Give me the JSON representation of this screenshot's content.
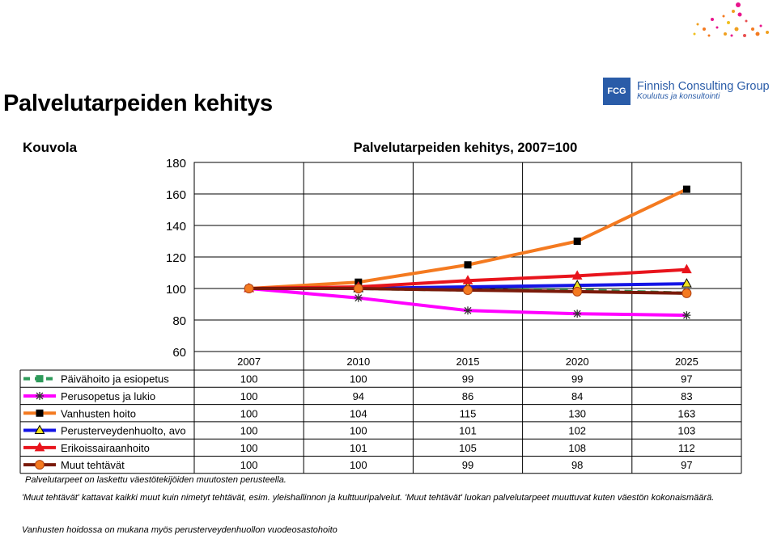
{
  "page": {
    "title": "Palvelutarpeiden kehitys",
    "logo": {
      "mark": "FCG",
      "name": "Finnish Consulting Group",
      "subtitle": "Koulutus ja konsultointi"
    }
  },
  "chart_data": {
    "type": "line",
    "region_label": "Kouvola",
    "title": "Palvelutarpeiden kehitys, 2007=100",
    "categories": [
      "2007",
      "2010",
      "2015",
      "2020",
      "2025"
    ],
    "ylim": [
      60,
      180
    ],
    "yticks": [
      60,
      80,
      100,
      120,
      140,
      160,
      180
    ],
    "grid": true,
    "legend_placement": "data-table",
    "series": [
      {
        "name": "Päivähoito ja esiopetus",
        "color": "#2e9a5a",
        "marker": "square",
        "dashed": true,
        "values": [
          100,
          100,
          99,
          99,
          97
        ]
      },
      {
        "name": "Perusopetus ja lukio",
        "color": "#ff00ff",
        "marker": "star",
        "dashed": false,
        "values": [
          100,
          94,
          86,
          84,
          83
        ]
      },
      {
        "name": "Vanhusten hoito",
        "color": "#f47a20",
        "marker": "square",
        "dashed": false,
        "values": [
          100,
          104,
          115,
          130,
          163
        ]
      },
      {
        "name": "Perusterveydenhuolto, avo",
        "color": "#1414e6",
        "marker": "triangle",
        "dashed": false,
        "values": [
          100,
          100,
          101,
          102,
          103
        ]
      },
      {
        "name": "Erikoissairaanhoito",
        "color": "#e8141c",
        "marker": "triangle",
        "dashed": false,
        "values": [
          100,
          101,
          105,
          108,
          112
        ]
      },
      {
        "name": "Muut tehtävät",
        "color": "#7a1a0a",
        "marker": "circle",
        "dashed": false,
        "values": [
          100,
          100,
          99,
          98,
          97
        ]
      }
    ]
  },
  "notes": {
    "line1": "Palvelutarpeet on laskettu väestötekijöiden muutosten perusteella.",
    "line2": "'Muut tehtävät'  kattavat kaikki muut kuin nimetyt tehtävät, esim. yleishallinnon ja kulttuuripalvelut. 'Muut tehtävät' luokan palvelutarpeet muuttuvat kuten väestön kokonaismäärä.",
    "line3": "Vanhusten hoidossa on mukana myös perusterveydenhuollon vuodeosastohoito"
  }
}
